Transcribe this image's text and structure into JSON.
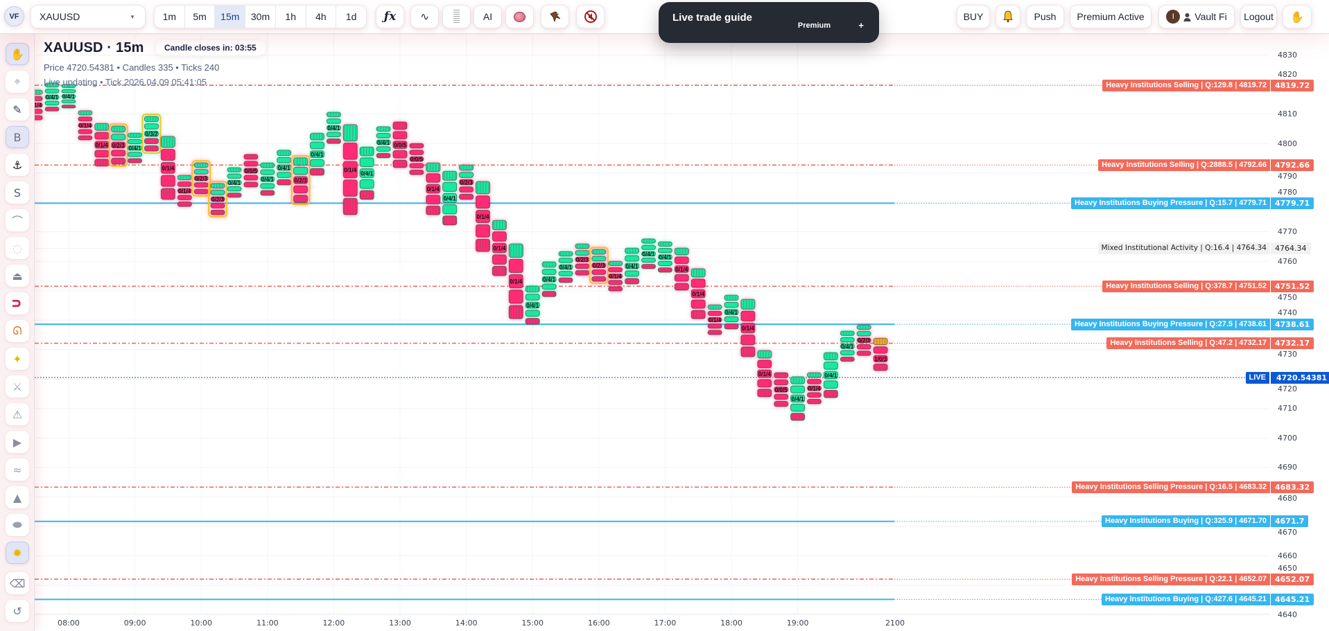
{
  "app": {
    "logo": "VF"
  },
  "toolbar": {
    "symbol": "XAUUSD",
    "timeframes": [
      "1m",
      "5m",
      "15m",
      "30m",
      "1h",
      "4h",
      "1d"
    ],
    "active_timeframe": "15m",
    "fx_label": "ƒx",
    "wave_label": "∿",
    "ai_label": "AI",
    "buy": "BUY",
    "push": "Push",
    "premium": "Premium Active",
    "user": {
      "initial": "I",
      "name": "Vault Fi"
    },
    "logout": "Logout"
  },
  "guide": {
    "title": "Live trade guide",
    "badge": "Premium",
    "action": "+"
  },
  "header": {
    "title": "XAUUSD · 15m",
    "stats": "Price 4720.54381 • Candles 335 • Ticks 240",
    "status": "Live updating • Tick 2026.04.09 05:41:05"
  },
  "countdown": "Candle closes in: 03:55",
  "sidebar": {
    "tools": [
      {
        "icon": "hand-icon",
        "active": true
      },
      {
        "icon": "crosshair-icon"
      },
      {
        "icon": "pencil-icon"
      },
      {
        "icon": "b-tool-icon",
        "label": "B",
        "active": true
      },
      {
        "icon": "anchor-icon"
      },
      {
        "icon": "s-tool-icon",
        "label": "S"
      },
      {
        "icon": "curve-icon"
      },
      {
        "icon": "dotted-circle-icon"
      },
      {
        "icon": "stamp-icon"
      },
      {
        "icon": "magnet-icon"
      },
      {
        "icon": "dna-icon"
      },
      {
        "icon": "sparkle-icon"
      },
      {
        "icon": "swords-icon"
      },
      {
        "icon": "warning-icon"
      },
      {
        "icon": "play-icon"
      },
      {
        "icon": "waves-icon"
      },
      {
        "icon": "mountain-icon"
      },
      {
        "icon": "ellipse-icon"
      },
      {
        "icon": "sun-icon",
        "active": true
      },
      {
        "icon": "eraser-icon"
      },
      {
        "icon": "undo-icon"
      }
    ]
  },
  "colors": {
    "sell": "#f26a5a",
    "buy": "#36b5ef",
    "mixed": "#f1f1f1",
    "live": "#0b5ad4",
    "candle_green": "#18e9a0",
    "candle_pink": "#ff2b74",
    "candle_orange": "#f5a623",
    "highlight": "#f6c61a"
  },
  "chart_data": {
    "type": "candlestick-cluster",
    "ylim": [
      4635,
      4835
    ],
    "y_ticks": [
      4640,
      4650,
      4660,
      4670,
      4680,
      4690,
      4700,
      4710,
      4720,
      4730,
      4740,
      4750,
      4760,
      4770,
      4780,
      4790,
      4800,
      4810,
      4820,
      4830
    ],
    "x_ticks": [
      "08:00",
      "09:00",
      "10:00",
      "11:00",
      "12:00",
      "13:00",
      "14:00",
      "15:00",
      "16:00",
      "17:00",
      "18:00",
      "19:00",
      "2100"
    ],
    "grid": true,
    "live": {
      "label": "LIVE",
      "price": "4720.54381"
    },
    "levels": [
      {
        "kind": "sell",
        "price": 4819.72,
        "text": "Heavy Institutions Selling | Q:129.8 | 4819.72",
        "value": "4819.72"
      },
      {
        "kind": "sell",
        "price": 4792.66,
        "text": "Heavy Institutions Selling | Q:2888.5 | 4792.66",
        "value": "4792.66"
      },
      {
        "kind": "buy",
        "price": 4779.71,
        "text": "Heavy Institutions Buying Pressure | Q:15.7 | 4779.71",
        "value": "4779.71"
      },
      {
        "kind": "mixed",
        "price": 4764.34,
        "text": "Mixed Institutional Activity | Q:16.4 | 4764.34",
        "value": "4764.34"
      },
      {
        "kind": "sell",
        "price": 4751.52,
        "text": "Heavy Institutions Selling | Q:378.7 | 4751.52",
        "value": "4751.52"
      },
      {
        "kind": "buy",
        "price": 4738.61,
        "text": "Heavy Institutions Buying Pressure | Q:27.5 | 4738.61",
        "value": "4738.61"
      },
      {
        "kind": "sell",
        "price": 4732.17,
        "text": "Heavy Institutions Selling | Q:47.2 | 4732.17",
        "value": "4732.17"
      },
      {
        "kind": "sell",
        "price": 4683.32,
        "text": "Heavy Institutions Selling Pressure | Q:16.5 | 4683.32",
        "value": "4683.32"
      },
      {
        "kind": "buy",
        "price": 4671.7,
        "text": "Heavy Institutions Buying | Q:325.9 | 4671.70",
        "value": "4671.7"
      },
      {
        "kind": "sell",
        "price": 4652.07,
        "text": "Heavy Institutions Selling Pressure | Q:22.1 | 4652.07",
        "value": "4652.07"
      },
      {
        "kind": "buy",
        "price": 4645.21,
        "text": "Heavy Institutions Buying | Q:427.6 | 4645.21",
        "value": "4645.21"
      }
    ],
    "candles": [
      {
        "t": "07:30",
        "high": 4818.1,
        "low": 4808.0,
        "label": "0/1/4"
      },
      {
        "t": "07:45",
        "high": 4820.5,
        "low": 4811.0,
        "label": "0/4/1"
      },
      {
        "t": "08:00",
        "high": 4820.0,
        "low": 4812.0,
        "label": "0/4/1"
      },
      {
        "t": "08:15",
        "high": 4811.1,
        "low": 4801.2,
        "label": "0/1/4"
      },
      {
        "t": "08:30",
        "high": 4806.8,
        "low": 4792.3,
        "label": "0/1/4"
      },
      {
        "t": "08:45",
        "high": 4805.9,
        "low": 4793.0,
        "label": "0/2/3",
        "highlight": true
      },
      {
        "t": "09:00",
        "high": 4803.5,
        "low": 4793.4,
        "label": "0/4/1"
      },
      {
        "t": "09:15",
        "high": 4809.2,
        "low": 4797.4,
        "label": "0/3/2",
        "highlight": true
      },
      {
        "t": "09:30",
        "high": 4802.4,
        "low": 4781.0,
        "label": "0/1/4"
      },
      {
        "t": "09:45",
        "high": 4789.2,
        "low": 4778.6,
        "label": "0/1/4"
      },
      {
        "t": "10:00",
        "high": 4793.4,
        "low": 4782.9,
        "label": "0/2/3",
        "highlight": true
      },
      {
        "t": "10:15",
        "high": 4786.4,
        "low": 4775.8,
        "label": "0/2/3",
        "highlight": true
      },
      {
        "t": "10:30",
        "high": 4791.8,
        "low": 4781.7,
        "label": "0/4/1"
      },
      {
        "t": "10:45",
        "high": 4796.3,
        "low": 4785.2,
        "label": "0/0/5"
      },
      {
        "t": "11:00",
        "high": 4793.4,
        "low": 4782.4,
        "label": "0/4/1"
      },
      {
        "t": "11:15",
        "high": 4797.7,
        "low": 4785.9,
        "label": "0/4/1"
      },
      {
        "t": "11:30",
        "high": 4795.1,
        "low": 4780.0,
        "label": "0/2/3",
        "highlight": true
      },
      {
        "t": "11:45",
        "high": 4803.5,
        "low": 4789.2,
        "label": "0/4/1"
      },
      {
        "t": "12:00",
        "high": 4810.6,
        "low": 4800.0,
        "label": "0/4/1"
      },
      {
        "t": "12:15",
        "high": 4806.4,
        "low": 4775.8,
        "label": "0/1/4"
      },
      {
        "t": "12:30",
        "high": 4798.8,
        "low": 4781.0,
        "label": "0/4/1"
      },
      {
        "t": "12:45",
        "high": 4805.7,
        "low": 4795.1,
        "label": "0/4/1"
      },
      {
        "t": "13:00",
        "high": 4807.3,
        "low": 4791.8,
        "label": "0/0/5"
      },
      {
        "t": "13:15",
        "high": 4800.0,
        "low": 4789.4,
        "label": "0/0/5"
      },
      {
        "t": "13:30",
        "high": 4793.4,
        "low": 4775.8,
        "label": "0/1/4"
      },
      {
        "t": "13:45",
        "high": 4790.6,
        "low": 4772.3,
        "label": "0/4/1"
      },
      {
        "t": "14:00",
        "high": 4792.7,
        "low": 4781.0,
        "label": "0/2/3"
      },
      {
        "t": "14:15",
        "high": 4787.1,
        "low": 4763.3,
        "label": "0/1/4"
      },
      {
        "t": "14:30",
        "high": 4773.9,
        "low": 4755.1,
        "label": "0/1/4"
      },
      {
        "t": "14:45",
        "high": 4765.9,
        "low": 4740.5,
        "label": "0/1/4"
      },
      {
        "t": "15:00",
        "high": 4751.6,
        "low": 4738.6,
        "label": "0/4/1"
      },
      {
        "t": "15:15",
        "high": 4759.8,
        "low": 4748.0,
        "label": "0/4/1"
      },
      {
        "t": "15:30",
        "high": 4763.3,
        "low": 4752.8,
        "label": "0/4/1"
      },
      {
        "t": "15:45",
        "high": 4765.9,
        "low": 4755.3,
        "label": "0/2/3"
      },
      {
        "t": "16:00",
        "high": 4764.0,
        "low": 4753.2,
        "label": "0/2/3",
        "highlight": true
      },
      {
        "t": "16:15",
        "high": 4760.0,
        "low": 4749.9,
        "label": "0/1/4"
      },
      {
        "t": "16:30",
        "high": 4764.5,
        "low": 4752.3,
        "label": "0/4/1"
      },
      {
        "t": "16:45",
        "high": 4767.6,
        "low": 4757.5,
        "label": "0/4/1"
      },
      {
        "t": "17:00",
        "high": 4766.6,
        "low": 4756.3,
        "label": "0/4/1"
      },
      {
        "t": "17:15",
        "high": 4764.5,
        "low": 4750.2,
        "label": "0/1/4"
      },
      {
        "t": "17:30",
        "high": 4757.5,
        "low": 4740.5,
        "label": "0/1/4"
      },
      {
        "t": "17:45",
        "high": 4745.2,
        "low": 4735.1,
        "label": "0/1/4"
      },
      {
        "t": "18:00",
        "high": 4748.5,
        "low": 4737.0,
        "label": "0/4/1"
      },
      {
        "t": "18:15",
        "high": 4747.1,
        "low": 4727.6,
        "label": "0/1/4"
      },
      {
        "t": "18:30",
        "high": 4729.7,
        "low": 4714.0,
        "label": "0/1/4"
      },
      {
        "t": "18:45",
        "high": 4722.2,
        "low": 4710.7,
        "label": "0/0/5"
      },
      {
        "t": "19:00",
        "high": 4720.8,
        "low": 4706.0,
        "label": "0/4/1"
      },
      {
        "t": "19:15",
        "high": 4722.2,
        "low": 4711.6,
        "label": "0/1/4"
      },
      {
        "t": "19:30",
        "high": 4729.0,
        "low": 4713.7,
        "label": "0/4/1"
      },
      {
        "t": "19:45",
        "high": 4736.3,
        "low": 4726.0,
        "label": "0/4/1"
      },
      {
        "t": "20:00",
        "high": 4738.4,
        "low": 4728.0,
        "label": "0/2/3"
      },
      {
        "t": "20:15",
        "high": 4733.9,
        "low": 4722.9,
        "label": "1/0/3"
      }
    ]
  }
}
